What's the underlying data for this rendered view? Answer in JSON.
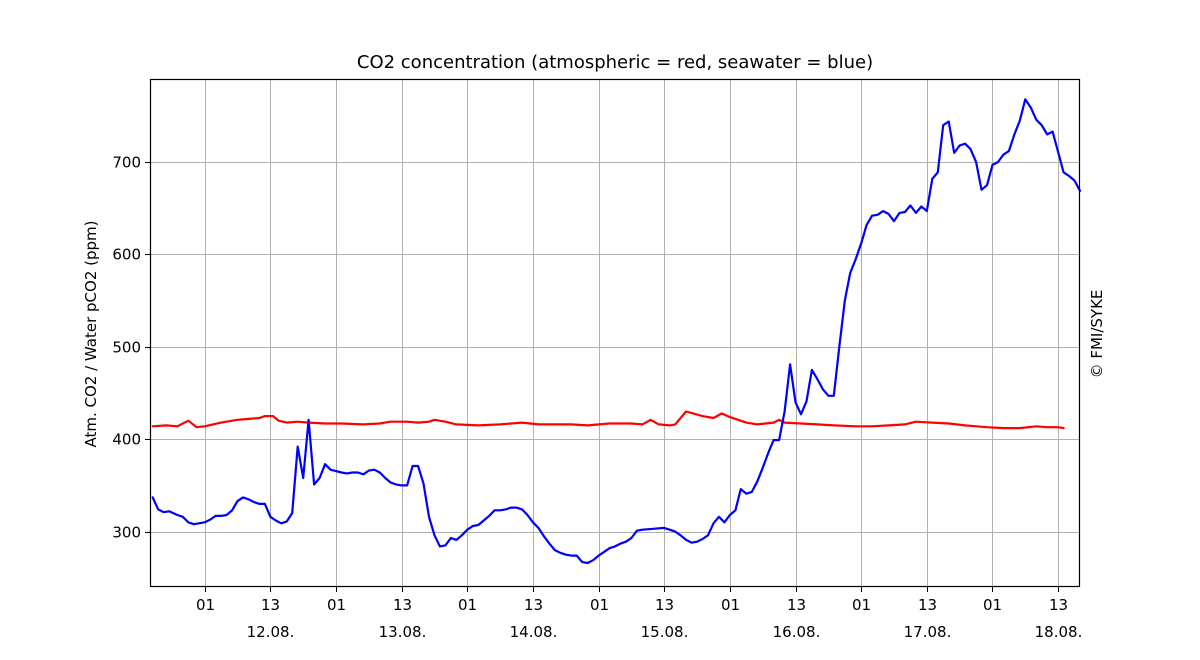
{
  "chart_data": {
    "type": "line",
    "title": "CO2 concentration (atmospheric = red, seawater = blue)",
    "xlabel": "",
    "ylabel": "Atm. CO2 / Water pCO2 (ppm)",
    "copyright": "© FMI/SYKE",
    "grid": true,
    "legend": "none",
    "x_unit": "hours",
    "xlim": [
      -4,
      166
    ],
    "ylim": [
      240,
      790
    ],
    "y_ticks": [
      300,
      400,
      500,
      600,
      700
    ],
    "x_ticks": [
      {
        "x": 6,
        "label": "01",
        "date": ""
      },
      {
        "x": 18,
        "label": "13",
        "date": "12.08."
      },
      {
        "x": 30,
        "label": "01",
        "date": ""
      },
      {
        "x": 42,
        "label": "13",
        "date": "13.08."
      },
      {
        "x": 54,
        "label": "01",
        "date": ""
      },
      {
        "x": 66,
        "label": "13",
        "date": "14.08."
      },
      {
        "x": 78,
        "label": "01",
        "date": ""
      },
      {
        "x": 90,
        "label": "13",
        "date": "15.08."
      },
      {
        "x": 102,
        "label": "01",
        "date": ""
      },
      {
        "x": 114,
        "label": "13",
        "date": "16.08."
      },
      {
        "x": 126,
        "label": "01",
        "date": ""
      },
      {
        "x": 138,
        "label": "13",
        "date": "17.08."
      },
      {
        "x": 150,
        "label": "01",
        "date": ""
      },
      {
        "x": 162,
        "label": "13",
        "date": "18.08."
      }
    ],
    "series": [
      {
        "color": "#ff0000",
        "points": [
          [
            -3.5,
            414
          ],
          [
            -1,
            415
          ],
          [
            1,
            414
          ],
          [
            3,
            420
          ],
          [
            4.5,
            413
          ],
          [
            6,
            414
          ],
          [
            9,
            418
          ],
          [
            12,
            421
          ],
          [
            14,
            422
          ],
          [
            16,
            423
          ],
          [
            17,
            425
          ],
          [
            18.5,
            425
          ],
          [
            19.5,
            420
          ],
          [
            21,
            418
          ],
          [
            23,
            419
          ],
          [
            25,
            418
          ],
          [
            28,
            417
          ],
          [
            31,
            417
          ],
          [
            35,
            416
          ],
          [
            38,
            417
          ],
          [
            40,
            419
          ],
          [
            43,
            419
          ],
          [
            45,
            418
          ],
          [
            47,
            419
          ],
          [
            48,
            421
          ],
          [
            50,
            419
          ],
          [
            52,
            416
          ],
          [
            56,
            415
          ],
          [
            60,
            416
          ],
          [
            64,
            418
          ],
          [
            67,
            416
          ],
          [
            70,
            416
          ],
          [
            73,
            416
          ],
          [
            76,
            415
          ],
          [
            80,
            417
          ],
          [
            84,
            417
          ],
          [
            86,
            416
          ],
          [
            87.5,
            421
          ],
          [
            89,
            416
          ],
          [
            91,
            415
          ],
          [
            92,
            416
          ],
          [
            94,
            430
          ],
          [
            97,
            425
          ],
          [
            99,
            423
          ],
          [
            100.5,
            428
          ],
          [
            102,
            424
          ],
          [
            103.5,
            421
          ],
          [
            105,
            418
          ],
          [
            107,
            416
          ],
          [
            108.5,
            417
          ],
          [
            110,
            418
          ],
          [
            111,
            421
          ],
          [
            112,
            418
          ],
          [
            115,
            417
          ],
          [
            118,
            416
          ],
          [
            121,
            415
          ],
          [
            125,
            414
          ],
          [
            128,
            414
          ],
          [
            131,
            415
          ],
          [
            134,
            416
          ],
          [
            136,
            419
          ],
          [
            139,
            418
          ],
          [
            142,
            417
          ],
          [
            145,
            415
          ],
          [
            147,
            414
          ],
          [
            149,
            413
          ],
          [
            152,
            412
          ],
          [
            155,
            412
          ],
          [
            158,
            414
          ],
          [
            160,
            413
          ],
          [
            162,
            413
          ],
          [
            163,
            412
          ]
        ]
      },
      {
        "color": "#0000ff",
        "points": [
          [
            -3.5,
            337
          ],
          [
            -2.5,
            324
          ],
          [
            -1.5,
            321
          ],
          [
            -0.5,
            322
          ],
          [
            1,
            318
          ],
          [
            2,
            316
          ],
          [
            3,
            310
          ],
          [
            4,
            308
          ],
          [
            6,
            310
          ],
          [
            7,
            313
          ],
          [
            8,
            317
          ],
          [
            9,
            317
          ],
          [
            10,
            318
          ],
          [
            11,
            323
          ],
          [
            12,
            333
          ],
          [
            13,
            337
          ],
          [
            14,
            335
          ],
          [
            15,
            332
          ],
          [
            16,
            330
          ],
          [
            17,
            330
          ],
          [
            18,
            316
          ],
          [
            19,
            312
          ],
          [
            20,
            309
          ],
          [
            21,
            311
          ],
          [
            22,
            320
          ],
          [
            23,
            392
          ],
          [
            24,
            358
          ],
          [
            25,
            421
          ],
          [
            26,
            351
          ],
          [
            27,
            358
          ],
          [
            28,
            373
          ],
          [
            29,
            367
          ],
          [
            31,
            364
          ],
          [
            32,
            363
          ],
          [
            33,
            364
          ],
          [
            34,
            364
          ],
          [
            35,
            362
          ],
          [
            36,
            366
          ],
          [
            37,
            367
          ],
          [
            38,
            364
          ],
          [
            39,
            358
          ],
          [
            40,
            353
          ],
          [
            41,
            351
          ],
          [
            42,
            350
          ],
          [
            43,
            350
          ],
          [
            44,
            371
          ],
          [
            45,
            371
          ],
          [
            46,
            352
          ],
          [
            47,
            316
          ],
          [
            48,
            296
          ],
          [
            49,
            284
          ],
          [
            50,
            285
          ],
          [
            51,
            293
          ],
          [
            52,
            291
          ],
          [
            53,
            296
          ],
          [
            54,
            302
          ],
          [
            55,
            306
          ],
          [
            56,
            307
          ],
          [
            57,
            312
          ],
          [
            58,
            317
          ],
          [
            59,
            323
          ],
          [
            60,
            323
          ],
          [
            61,
            324
          ],
          [
            62,
            326
          ],
          [
            63,
            326
          ],
          [
            64,
            324
          ],
          [
            65,
            318
          ],
          [
            66,
            310
          ],
          [
            67,
            304
          ],
          [
            68,
            295
          ],
          [
            69,
            287
          ],
          [
            70,
            280
          ],
          [
            71,
            277
          ],
          [
            72,
            275
          ],
          [
            73,
            274
          ],
          [
            74,
            274
          ],
          [
            75,
            267
          ],
          [
            76,
            266
          ],
          [
            77,
            269
          ],
          [
            78,
            274
          ],
          [
            79,
            278
          ],
          [
            80,
            282
          ],
          [
            81,
            284
          ],
          [
            82,
            287
          ],
          [
            83,
            289
          ],
          [
            84,
            293
          ],
          [
            85,
            301
          ],
          [
            86,
            302
          ],
          [
            88,
            303
          ],
          [
            90,
            304
          ],
          [
            91,
            302
          ],
          [
            92,
            300
          ],
          [
            93,
            296
          ],
          [
            94,
            291
          ],
          [
            95,
            288
          ],
          [
            96,
            289
          ],
          [
            97,
            292
          ],
          [
            98,
            296
          ],
          [
            99,
            309
          ],
          [
            100,
            316
          ],
          [
            101,
            310
          ],
          [
            102,
            318
          ],
          [
            103,
            323
          ],
          [
            104,
            346
          ],
          [
            105,
            341
          ],
          [
            106,
            343
          ],
          [
            107,
            354
          ],
          [
            108,
            369
          ],
          [
            109,
            385
          ],
          [
            110,
            399
          ],
          [
            111,
            399
          ],
          [
            112,
            430
          ],
          [
            113,
            481
          ],
          [
            114,
            440
          ],
          [
            115,
            427
          ],
          [
            116,
            441
          ],
          [
            117,
            475
          ],
          [
            118,
            465
          ],
          [
            119,
            454
          ],
          [
            120,
            447
          ],
          [
            121,
            447
          ],
          [
            122,
            500
          ],
          [
            123,
            550
          ],
          [
            124,
            580
          ],
          [
            125,
            595
          ],
          [
            126,
            612
          ],
          [
            127,
            632
          ],
          [
            128,
            642
          ],
          [
            129,
            643
          ],
          [
            130,
            647
          ],
          [
            131,
            644
          ],
          [
            132,
            636
          ],
          [
            133,
            645
          ],
          [
            134,
            646
          ],
          [
            135,
            653
          ],
          [
            136,
            645
          ],
          [
            137,
            652
          ],
          [
            138,
            647
          ],
          [
            139,
            682
          ],
          [
            140,
            689
          ],
          [
            141,
            740
          ],
          [
            142,
            744
          ],
          [
            143,
            710
          ],
          [
            144,
            718
          ],
          [
            145,
            720
          ],
          [
            146,
            714
          ],
          [
            147,
            700
          ],
          [
            148,
            670
          ],
          [
            149,
            675
          ],
          [
            150,
            697
          ],
          [
            151,
            700
          ],
          [
            152,
            708
          ],
          [
            153,
            712
          ],
          [
            154,
            730
          ],
          [
            155,
            745
          ],
          [
            156,
            768
          ],
          [
            157,
            759
          ],
          [
            158,
            746
          ],
          [
            159,
            740
          ],
          [
            160,
            730
          ],
          [
            161,
            733
          ],
          [
            162,
            711
          ],
          [
            163,
            689
          ],
          [
            164,
            685
          ],
          [
            165,
            680
          ],
          [
            166,
            669
          ]
        ]
      }
    ]
  }
}
